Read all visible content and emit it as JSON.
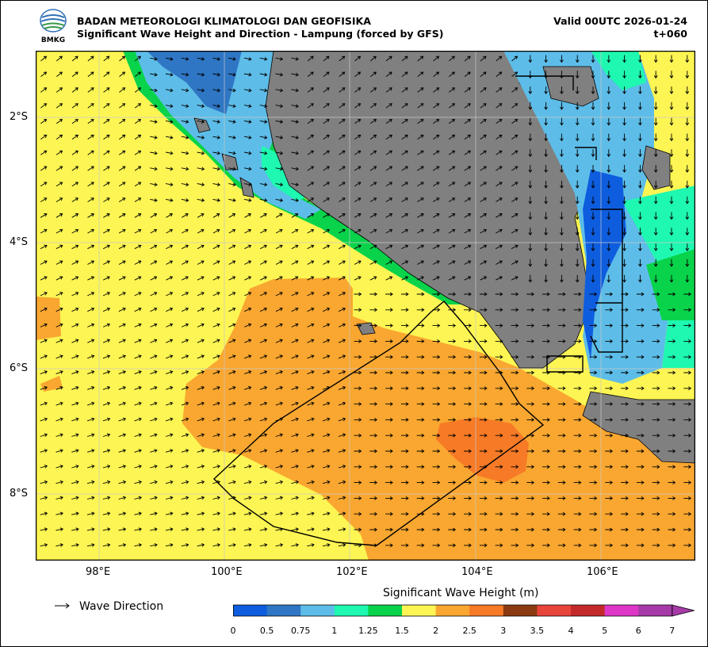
{
  "header": {
    "org": "BADAN METEOROLOGI KLIMATOLOGI DAN GEOFISIKA",
    "subtitle": "Significant Wave Height and Direction - Lampung (forced by GFS)",
    "valid": "Valid 00UTC 2026-01-24",
    "lead": "t+060",
    "logo_text": "BMKG"
  },
  "map": {
    "lon_ticks": [
      "98°E",
      "100°E",
      "102°E",
      "104°E",
      "106°E"
    ],
    "lat_ticks": [
      "2°S",
      "4°S",
      "6°S",
      "8°S"
    ],
    "land_color": "#808080",
    "sea_base_color": "#fdf553",
    "region": "Lampung"
  },
  "legend": {
    "arrow_label": "Wave Direction",
    "colorbar_title": "Significant Wave Height (m)",
    "levels": [
      "0",
      "0.5",
      "0.75",
      "1",
      "1.25",
      "1.5",
      "2",
      "2.5",
      "3",
      "3.5",
      "4",
      "5",
      "6",
      "7"
    ],
    "colors": [
      "#0e5ddf",
      "#2f76c4",
      "#5dbde8",
      "#1ef8b0",
      "#08d34a",
      "#fdf553",
      "#f9a730",
      "#f77a26",
      "#8b3a12",
      "#e8443a",
      "#c42a2a",
      "#de37c8",
      "#a63aa8"
    ]
  }
}
